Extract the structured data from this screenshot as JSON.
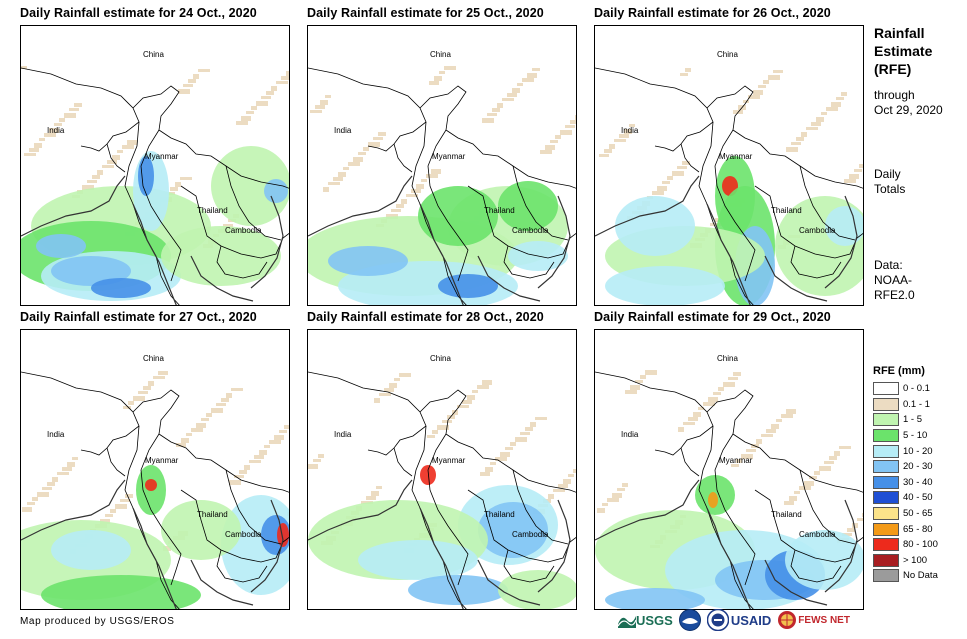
{
  "panels": [
    {
      "title": "Daily Rainfall estimate for 24 Oct., 2020",
      "labels": {
        "china": "China",
        "india": "India",
        "myanmar": "Myanmar",
        "thailand": "Thailand",
        "cambodia": "Cambodia"
      }
    },
    {
      "title": "Daily Rainfall estimate for 25 Oct., 2020",
      "labels": {
        "china": "China",
        "india": "India",
        "myanmar": "Myanmar",
        "thailand": "Thailand",
        "cambodia": "Cambodia"
      }
    },
    {
      "title": "Daily Rainfall estimate for 26 Oct., 2020",
      "labels": {
        "china": "China",
        "india": "India",
        "myanmar": "Myanmar",
        "thailand": "Thailand",
        "cambodia": "Cambodia"
      }
    },
    {
      "title": "Daily Rainfall estimate for 27 Oct., 2020",
      "labels": {
        "china": "China",
        "india": "India",
        "myanmar": "Myanmar",
        "thailand": "Thailand",
        "cambodia": "Cambodia"
      }
    },
    {
      "title": "Daily Rainfall estimate for 28 Oct., 2020",
      "labels": {
        "china": "China",
        "india": "India",
        "myanmar": "Myanmar",
        "thailand": "Thailand",
        "cambodia": "Cambodia"
      }
    },
    {
      "title": "Daily Rainfall estimate for 29 Oct., 2020",
      "labels": {
        "china": "China",
        "india": "India",
        "myanmar": "Myanmar",
        "thailand": "Thailand",
        "cambodia": "Cambodia"
      }
    }
  ],
  "sidebar": {
    "title_line1": "Rainfall",
    "title_line2": "Estimate",
    "title_line3": "(RFE)",
    "through": "through",
    "date": "Oct 29, 2020",
    "daily": "Daily",
    "totals": "Totals",
    "data_label": "Data:",
    "data_source1": "NOAA-",
    "data_source2": "RFE2.0"
  },
  "legend": {
    "title": "RFE (mm)",
    "items": [
      {
        "label": "0 - 0.1",
        "color": "#ffffff"
      },
      {
        "label": "0.1 - 1",
        "color": "#ecdcc2"
      },
      {
        "label": "1 - 5",
        "color": "#c0f4b0"
      },
      {
        "label": "5 - 10",
        "color": "#6be36b"
      },
      {
        "label": "10 - 20",
        "color": "#b6ecf6"
      },
      {
        "label": "20 - 30",
        "color": "#82c4f4"
      },
      {
        "label": "30 - 40",
        "color": "#4690e8"
      },
      {
        "label": "40 - 50",
        "color": "#1f4fd4"
      },
      {
        "label": "50 - 65",
        "color": "#fbe38a"
      },
      {
        "label": "65 - 80",
        "color": "#f39a18"
      },
      {
        "label": "80 - 100",
        "color": "#ed2a1c"
      },
      {
        "label": "> 100",
        "color": "#a81e22"
      },
      {
        "label": "No Data",
        "color": "#9b9b9b"
      }
    ]
  },
  "footer": {
    "credit": "Map produced by USGS/EROS",
    "logo_usgs": "USGS",
    "logo_usaid": "USAID",
    "logo_fewsnet": "FEWS NET"
  }
}
